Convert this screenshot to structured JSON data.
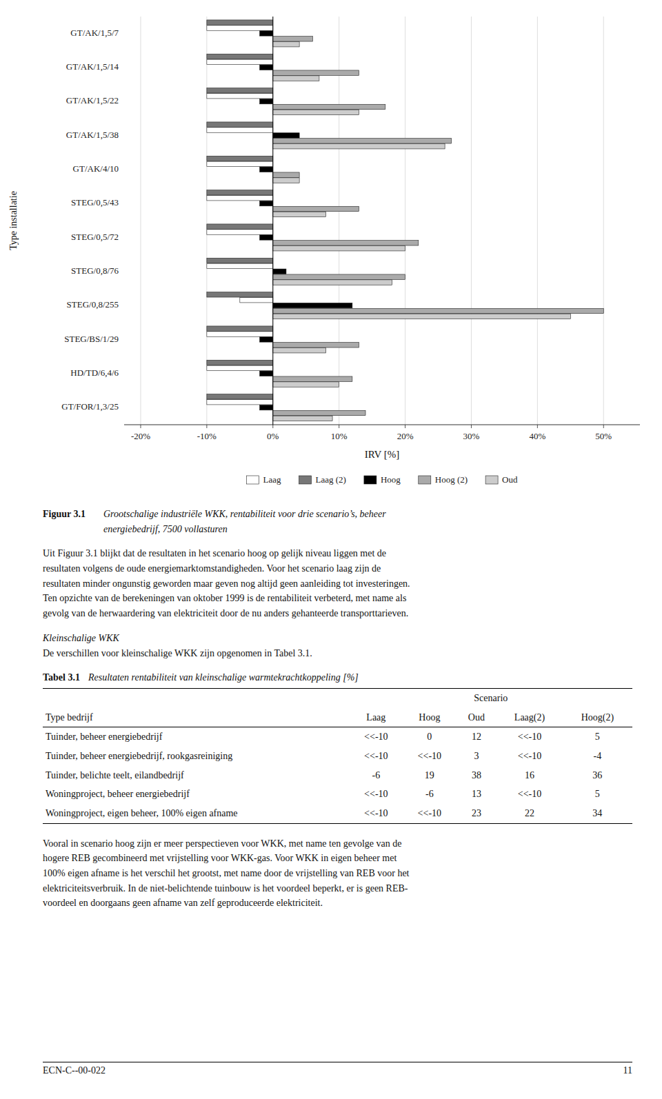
{
  "chart_data": {
    "type": "bar",
    "orientation": "horizontal",
    "xlabel": "IRV [%]",
    "ylabel": "Type installatie",
    "categories": [
      "GT/AK/1,5/7",
      "GT/AK/1,5/14",
      "GT/AK/1,5/22",
      "GT/AK/1,5/38",
      "GT/AK/4/10",
      "STEG/0,5/43",
      "STEG/0,5/72",
      "STEG/0,8/76",
      "STEG/0,8/255",
      "STEG/BS/1/29",
      "HD/TD/6,4/6",
      "GT/FOR/1,3/25"
    ],
    "series": [
      {
        "name": "Laag",
        "color": "#ffffff",
        "values": [
          -0.1,
          -0.1,
          -0.1,
          -0.1,
          -0.1,
          -0.1,
          -0.1,
          -0.1,
          -0.05,
          -0.1,
          -0.1,
          -0.1
        ]
      },
      {
        "name": "Laag (2)",
        "color": "#777777",
        "values": [
          -0.1,
          -0.1,
          -0.1,
          -0.1,
          -0.1,
          -0.1,
          -0.1,
          -0.1,
          -0.1,
          -0.1,
          -0.1,
          -0.1
        ]
      },
      {
        "name": "Hoog",
        "color": "#000000",
        "values": [
          -0.02,
          -0.02,
          -0.02,
          0.04,
          -0.02,
          -0.02,
          -0.02,
          0.02,
          0.12,
          -0.02,
          -0.02,
          -0.02
        ]
      },
      {
        "name": "Hoog (2)",
        "color": "#aaaaaa",
        "values": [
          0.06,
          0.13,
          0.17,
          0.27,
          0.04,
          0.13,
          0.22,
          0.2,
          0.5,
          0.13,
          0.12,
          0.14
        ]
      },
      {
        "name": "Oud",
        "color": "#cccccc",
        "values": [
          0.04,
          0.07,
          0.13,
          0.26,
          0.04,
          0.08,
          0.2,
          0.18,
          0.45,
          0.08,
          0.1,
          0.09
        ]
      }
    ],
    "xlim": [
      -0.225,
      0.555
    ],
    "xticks": [
      {
        "value": -0.2,
        "label": "-20%"
      },
      {
        "value": -0.1,
        "label": "-10%"
      },
      {
        "value": 0.0,
        "label": "0%"
      },
      {
        "value": 0.1,
        "label": "10%"
      },
      {
        "value": 0.2,
        "label": "20%"
      },
      {
        "value": 0.3,
        "label": "30%"
      },
      {
        "value": 0.4,
        "label": "40%"
      },
      {
        "value": 0.5,
        "label": "50%"
      }
    ],
    "grid": true,
    "legend": "bottom"
  },
  "figure_caption": {
    "label": "Figuur 3.1",
    "lines": [
      "Grootschalige industriële WKK, rentabiliteit voor drie scenario’s, beheer",
      "energiebedrijf, 7500 vollasturen"
    ]
  },
  "body_text1": [
    "Uit Figuur 3.1 blijkt dat de resultaten in het scenario hoog op gelijk niveau liggen met de",
    "resultaten volgens de oude energiemarktomstandigheden. Voor het scenario laag zijn de",
    "resultaten minder ongunstig geworden maar geven nog altijd geen aanleiding tot investeringen.",
    "Ten opzichte van de berekeningen van oktober 1999 is de rentabiliteit verbeterd, met name als",
    "gevolg van de herwaardering van elektriciteit door de nu anders gehanteerde transporttarieven."
  ],
  "section_header": "Kleinschalige WKK",
  "section_body": "De verschillen voor kleinschalige WKK zijn opgenomen in Tabel 3.1.",
  "table": {
    "label": "Tabel 3.1",
    "caption": "Resultaten rentabiliteit van kleinschalige warmtekrachtkoppeling [%]",
    "group_header": "Scenario",
    "row_header": "Type bedrijf",
    "columns": [
      "Laag",
      "Hoog",
      "Oud",
      "Laag(2)",
      "Hoog(2)"
    ],
    "rows": [
      [
        "Tuinder, beheer energiebedrijf",
        "<<-10",
        "0",
        "12",
        "<<-10",
        "5"
      ],
      [
        "Tuinder, beheer energiebedrijf, rookgasreiniging",
        "<<-10",
        "<<-10",
        "3",
        "<<-10",
        "-4"
      ],
      [
        "Tuinder, belichte teelt, eilandbedrijf",
        "-6",
        "19",
        "38",
        "16",
        "36"
      ],
      [
        "Woningproject, beheer energiebedrijf",
        "<<-10",
        "-6",
        "13",
        "<<-10",
        "5"
      ],
      [
        "Woningproject, eigen beheer, 100% eigen afname",
        "<<-10",
        "<<-10",
        "23",
        "22",
        "34"
      ]
    ]
  },
  "body_text2": [
    "Vooral in scenario hoog zijn er meer perspectieven voor WKK, met name ten gevolge van de",
    "hogere REB gecombineerd met vrijstelling voor WKK-gas. Voor WKK in eigen beheer met",
    "100% eigen afname is het verschil het grootst, met name door de vrijstelling van REB voor het",
    "elektriciteitsverbruik. In de niet-belichtende tuinbouw is het voordeel beperkt, er is geen REB-",
    "voordeel en doorgaans geen afname van zelf geproduceerde elektriciteit."
  ],
  "footer_left": "ECN-C--00-022",
  "footer_right": "11"
}
